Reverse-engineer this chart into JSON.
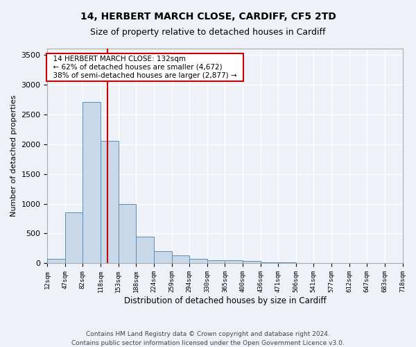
{
  "title1": "14, HERBERT MARCH CLOSE, CARDIFF, CF5 2TD",
  "title2": "Size of property relative to detached houses in Cardiff",
  "xlabel": "Distribution of detached houses by size in Cardiff",
  "ylabel": "Number of detached properties",
  "annotation_line1": "14 HERBERT MARCH CLOSE: 132sqm",
  "annotation_line2": "← 62% of detached houses are smaller (4,672)",
  "annotation_line3": "38% of semi-detached houses are larger (2,877) →",
  "property_size_sqm": 132,
  "bin_edges": [
    12,
    47,
    82,
    118,
    153,
    188,
    224,
    259,
    294,
    330,
    365,
    400,
    436,
    471,
    506,
    541,
    577,
    612,
    647,
    683,
    718
  ],
  "bar_heights": [
    75,
    850,
    2700,
    2050,
    1000,
    450,
    200,
    130,
    80,
    55,
    50,
    40,
    20,
    15,
    10,
    8,
    5,
    4,
    3,
    2
  ],
  "bar_color": "#c8d8e8",
  "bar_edge_color": "#5a8db5",
  "vline_color": "#cc0000",
  "annotation_box_edgecolor": "#cc0000",
  "background_color": "#eef2f8",
  "grid_color": "#ffffff",
  "ylim": [
    0,
    3600
  ],
  "yticks": [
    0,
    500,
    1000,
    1500,
    2000,
    2500,
    3000,
    3500
  ],
  "footer1": "Contains HM Land Registry data © Crown copyright and database right 2024.",
  "footer2": "Contains public sector information licensed under the Open Government Licence v3.0."
}
